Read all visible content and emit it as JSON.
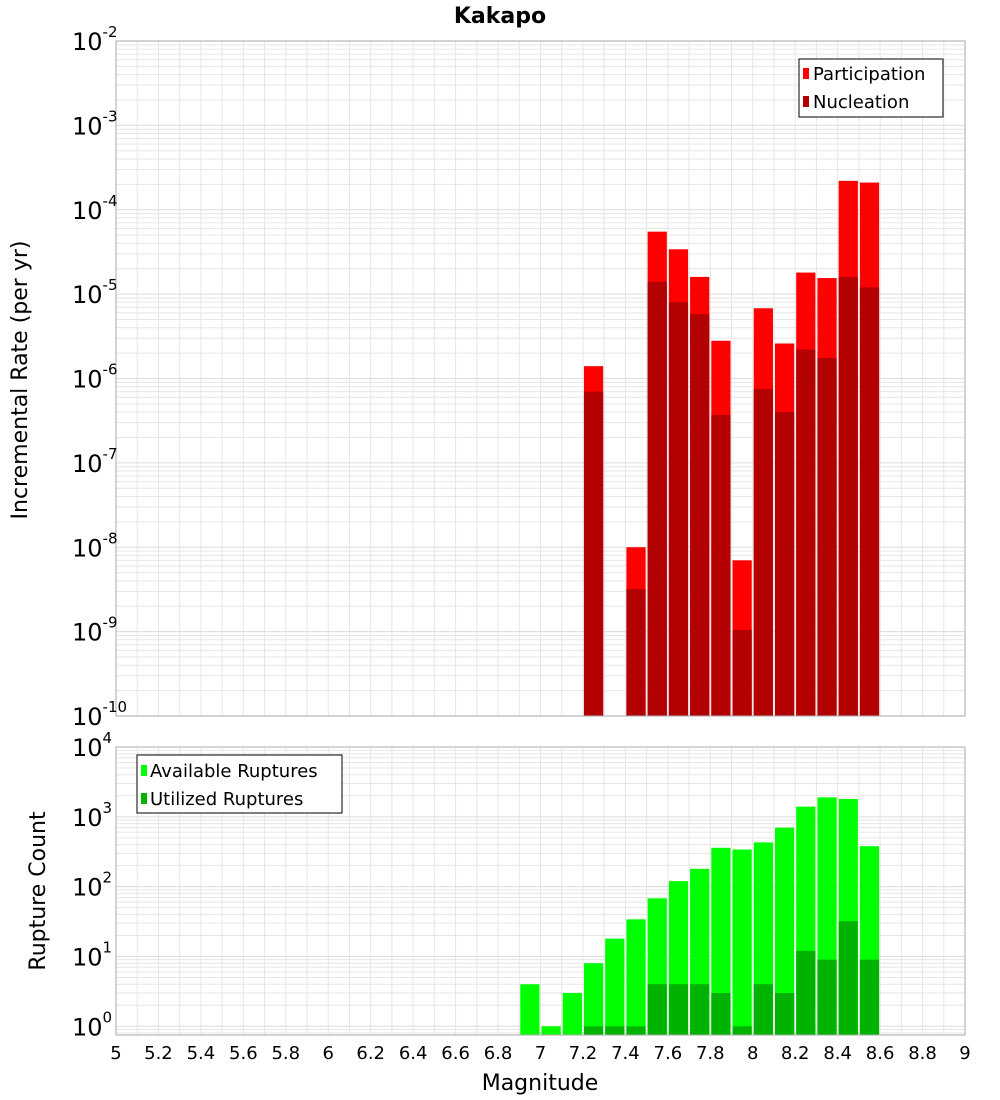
{
  "colors": {
    "participation": "#ff0000",
    "nucleation": "#b30000",
    "available": "#00ff00",
    "utilized": "#00b300",
    "grid": "#e6e6e6",
    "frame": "#aaaaaa"
  },
  "chart_data": [
    {
      "type": "bar",
      "title": "Kakapo",
      "xlabel": "",
      "ylabel": "Incremental Rate (per yr)",
      "xlim": [
        5,
        9
      ],
      "ylim": [
        1e-10,
        0.01
      ],
      "yscale": "log",
      "grid": true,
      "bin_width": 0.1,
      "ytick_labels": [
        {
          "base": "10",
          "exp": "-10"
        },
        {
          "base": "10",
          "exp": "-9"
        },
        {
          "base": "10",
          "exp": "-8"
        },
        {
          "base": "10",
          "exp": "-7"
        },
        {
          "base": "10",
          "exp": "-6"
        },
        {
          "base": "10",
          "exp": "-5"
        },
        {
          "base": "10",
          "exp": "-4"
        },
        {
          "base": "10",
          "exp": "-3"
        },
        {
          "base": "10",
          "exp": "-2"
        }
      ],
      "legend": {
        "position": "top-right",
        "entries": [
          "Participation",
          "Nucleation"
        ]
      },
      "x": [
        7.25,
        7.45,
        7.55,
        7.65,
        7.75,
        7.85,
        7.95,
        8.05,
        8.15,
        8.25,
        8.35,
        8.45,
        8.55
      ],
      "series": [
        {
          "name": "Participation",
          "values": [
            1.4e-06,
            1e-08,
            5.5e-05,
            3.4e-05,
            1.6e-05,
            2.8e-06,
            7e-09,
            6.8e-06,
            2.6e-06,
            1.8e-05,
            1.55e-05,
            0.00022,
            0.00021
          ]
        },
        {
          "name": "Nucleation",
          "values": [
            7e-07,
            3.2e-09,
            1.4e-05,
            8e-06,
            5.8e-06,
            3.7e-07,
            1.05e-09,
            7.5e-07,
            4e-07,
            2.2e-06,
            1.75e-06,
            1.6e-05,
            1.2e-05
          ]
        }
      ]
    },
    {
      "type": "bar",
      "title": "",
      "xlabel": "Magnitude",
      "ylabel": "Rupture Count",
      "xlim": [
        5,
        9
      ],
      "ylim": [
        0.75,
        10000
      ],
      "yscale": "log",
      "grid": true,
      "bin_width": 0.1,
      "xticks": [
        "5",
        "5.2",
        "5.4",
        "5.6",
        "5.8",
        "6",
        "6.2",
        "6.4",
        "6.6",
        "6.8",
        "7",
        "7.2",
        "7.4",
        "7.6",
        "7.8",
        "8",
        "8.2",
        "8.4",
        "8.6",
        "8.8",
        "9"
      ],
      "ytick_labels": [
        {
          "base": "10",
          "exp": "0"
        },
        {
          "base": "10",
          "exp": "1"
        },
        {
          "base": "10",
          "exp": "2"
        },
        {
          "base": "10",
          "exp": "3"
        },
        {
          "base": "10",
          "exp": "4"
        }
      ],
      "legend": {
        "position": "top-left",
        "entries": [
          "Available Ruptures",
          "Utilized Ruptures"
        ]
      },
      "x": [
        6.95,
        7.05,
        7.15,
        7.25,
        7.35,
        7.45,
        7.55,
        7.65,
        7.75,
        7.85,
        7.95,
        8.05,
        8.15,
        8.25,
        8.35,
        8.45,
        8.55
      ],
      "series": [
        {
          "name": "Available Ruptures",
          "values": [
            4,
            1,
            3,
            8,
            18,
            34,
            68,
            120,
            180,
            360,
            340,
            430,
            700,
            1400,
            1900,
            1800,
            380
          ]
        },
        {
          "name": "Utilized Ruptures",
          "values": [
            0,
            0,
            0,
            1,
            1,
            1,
            4,
            4,
            4,
            3,
            1,
            4,
            3,
            12,
            9,
            32,
            9
          ]
        }
      ]
    }
  ]
}
